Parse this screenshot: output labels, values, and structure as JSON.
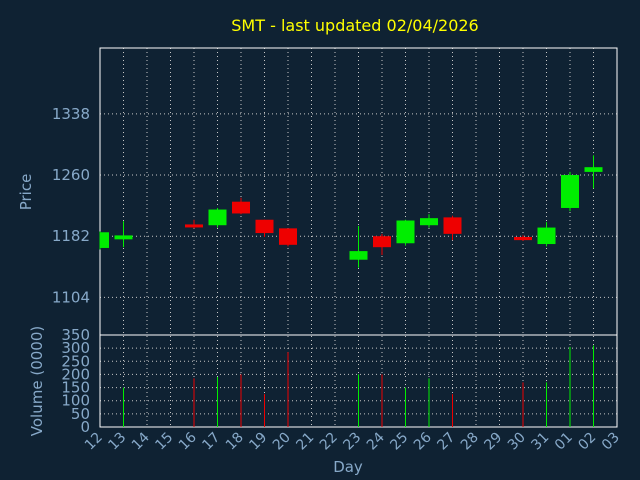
{
  "chart_data": {
    "type": "candlestick",
    "title": "SMT - last updated 02/04/2026",
    "xlabel": "Day",
    "price_panel": {
      "ylabel": "Price",
      "yticks": [
        1104,
        1182,
        1260,
        1338
      ],
      "ylim": [
        1056,
        1422
      ]
    },
    "volume_panel": {
      "ylabel": "Volume (0000)",
      "yticks": [
        0,
        50,
        100,
        150,
        200,
        250,
        300,
        350
      ],
      "ylim": [
        0,
        350
      ]
    },
    "x_ticks": [
      "12",
      "13",
      "14",
      "15",
      "16",
      "17",
      "18",
      "19",
      "20",
      "21",
      "22",
      "23",
      "24",
      "25",
      "26",
      "27",
      "28",
      "29",
      "30",
      "31",
      "01",
      "02",
      "03"
    ],
    "candles": [
      {
        "day": "12",
        "open": 1167,
        "high": 1188,
        "low": 1165,
        "close": 1187,
        "volume": 0
      },
      {
        "day": "13",
        "open": 1178,
        "high": 1201,
        "low": 1168,
        "close": 1183,
        "volume": 150
      },
      {
        "day": "16",
        "open": 1197,
        "high": 1203,
        "low": 1192,
        "close": 1194,
        "volume": 185
      },
      {
        "day": "17",
        "open": 1196,
        "high": 1218,
        "low": 1193,
        "close": 1216,
        "volume": 190
      },
      {
        "day": "18",
        "open": 1226,
        "high": 1231,
        "low": 1210,
        "close": 1211,
        "volume": 200
      },
      {
        "day": "19",
        "open": 1203,
        "high": 1203,
        "low": 1181,
        "close": 1186,
        "volume": 125
      },
      {
        "day": "20",
        "open": 1192,
        "high": 1192,
        "low": 1169,
        "close": 1171,
        "volume": 285
      },
      {
        "day": "23",
        "open": 1152,
        "high": 1195,
        "low": 1142,
        "close": 1163,
        "volume": 200
      },
      {
        "day": "24",
        "open": 1182,
        "high": 1185,
        "low": 1158,
        "close": 1168,
        "volume": 200
      },
      {
        "day": "25",
        "open": 1173,
        "high": 1203,
        "low": 1170,
        "close": 1202,
        "volume": 150
      },
      {
        "day": "26",
        "open": 1196,
        "high": 1210,
        "low": 1193,
        "close": 1205,
        "volume": 185
      },
      {
        "day": "27",
        "open": 1206,
        "high": 1208,
        "low": 1177,
        "close": 1185,
        "volume": 125
      },
      {
        "day": "30",
        "open": 1181,
        "high": 1183,
        "low": 1176,
        "close": 1177,
        "volume": 170
      },
      {
        "day": "31",
        "open": 1172,
        "high": 1200,
        "low": 1169,
        "close": 1193,
        "volume": 170
      },
      {
        "day": "01",
        "open": 1218,
        "high": 1264,
        "low": 1214,
        "close": 1260,
        "volume": 305
      },
      {
        "day": "02",
        "open": 1264,
        "high": 1285,
        "low": 1243,
        "close": 1270,
        "volume": 310
      }
    ],
    "colors": {
      "up": "#00ee00",
      "down": "#ee0000",
      "title": "#ffff00",
      "axis_text": "#87a9c9",
      "grid": "#c8c8c8",
      "background": "#0f2233",
      "plot_border": "#ffffff"
    }
  }
}
